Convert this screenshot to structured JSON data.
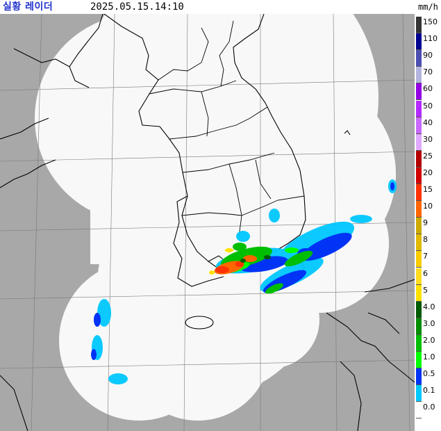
{
  "header": {
    "title": "실황 레이더",
    "timestamp": "2025.05.15.14:10",
    "unit": "mm/h"
  },
  "colors": {
    "background_sea": "#a8a8a8",
    "radar_coverage": "#f8f8f8",
    "coastline": "#000000",
    "grid": "#666666"
  },
  "scale": [
    {
      "label": "150",
      "color": "#333333"
    },
    {
      "label": "110",
      "color": "#000390"
    },
    {
      "label": "90",
      "color": "#4c4eb1"
    },
    {
      "label": "70",
      "color": "#b3b4de"
    },
    {
      "label": "60",
      "color": "#9300e4"
    },
    {
      "label": "50",
      "color": "#b329ff"
    },
    {
      "label": "40",
      "color": "#c969ff"
    },
    {
      "label": "30",
      "color": "#e0a9ff"
    },
    {
      "label": "25",
      "color": "#b40000"
    },
    {
      "label": "20",
      "color": "#d20000"
    },
    {
      "label": "15",
      "color": "#ff3200"
    },
    {
      "label": "10",
      "color": "#ff6600"
    },
    {
      "label": "9",
      "color": "#ccaa00"
    },
    {
      "label": "8",
      "color": "#e0b900"
    },
    {
      "label": "7",
      "color": "#f9cd00"
    },
    {
      "label": "6",
      "color": "#ffdc1f"
    },
    {
      "label": "5",
      "color": "#ffe100"
    },
    {
      "label": "4.0",
      "color": "#005a00"
    },
    {
      "label": "3.0",
      "color": "#008c00"
    },
    {
      "label": "2.0",
      "color": "#00be00"
    },
    {
      "label": "1.0",
      "color": "#00ff00"
    },
    {
      "label": "0.5",
      "color": "#0033f5"
    },
    {
      "label": "0.1",
      "color": "#00c8ff"
    },
    {
      "label": "0.0",
      "color": "#ffffff"
    }
  ]
}
